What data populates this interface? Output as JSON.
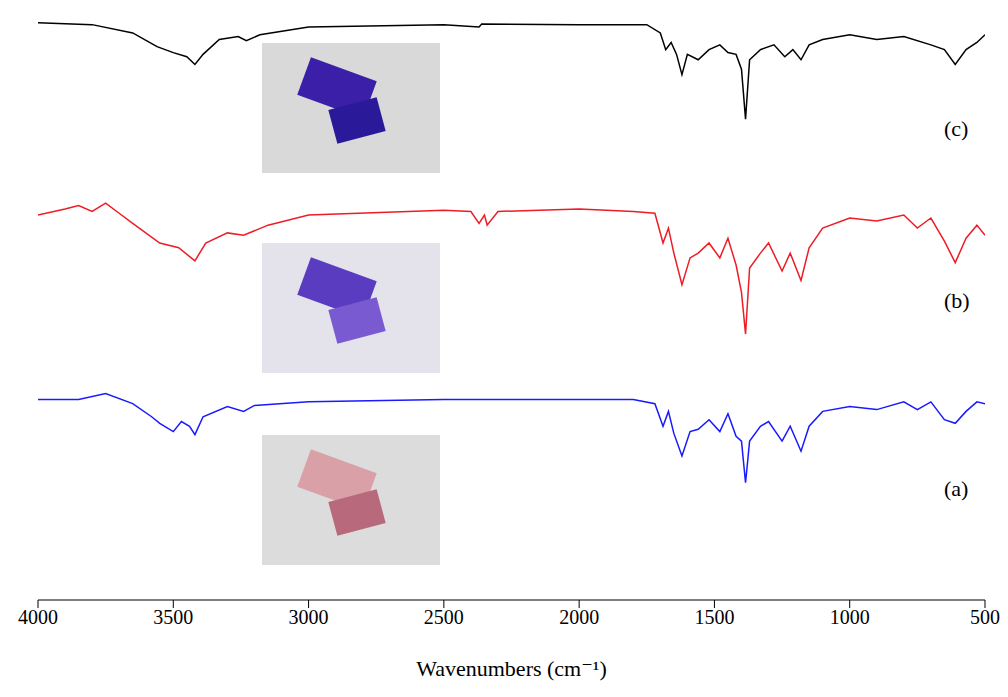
{
  "chart_data": {
    "type": "line",
    "xlabel": "Wavenumbers (cm⁻¹)",
    "xlim": [
      4000,
      500
    ],
    "xticks": [
      4000,
      3500,
      3000,
      2500,
      2000,
      1500,
      1000,
      500
    ],
    "ylim": [
      0,
      100
    ],
    "tick_labels": "x",
    "grid": false,
    "series": [
      {
        "name": "(c)",
        "color": "#000000",
        "x": [
          4000,
          3800,
          3650,
          3560,
          3500,
          3450,
          3420,
          3390,
          3330,
          3260,
          3230,
          3180,
          3000,
          2500,
          2370,
          2360,
          2000,
          1750,
          1700,
          1680,
          1660,
          1640,
          1620,
          1600,
          1560,
          1520,
          1480,
          1450,
          1420,
          1400,
          1385,
          1370,
          1330,
          1280,
          1240,
          1210,
          1180,
          1150,
          1100,
          1000,
          900,
          800,
          700,
          650,
          610,
          570,
          530,
          500
        ],
        "values": [
          97,
          96.7,
          95.3,
          93,
          92,
          91.3,
          90,
          91.7,
          94.2,
          94.7,
          94,
          95,
          96.3,
          96.7,
          96.3,
          96.8,
          96.7,
          96.7,
          95.3,
          92.5,
          93.7,
          91.7,
          88.3,
          91.7,
          90.8,
          92.5,
          93.3,
          92,
          91.7,
          89.2,
          80.8,
          90.8,
          92.5,
          93.3,
          91.3,
          92.5,
          90.8,
          93.3,
          94.2,
          95,
          94.2,
          94.7,
          93.3,
          92.5,
          90,
          92.5,
          93.7,
          95
        ]
      },
      {
        "name": "(b)",
        "color": "#ee1c25",
        "x": [
          4000,
          3900,
          3850,
          3800,
          3750,
          3700,
          3650,
          3550,
          3480,
          3420,
          3380,
          3300,
          3240,
          3150,
          3000,
          2500,
          2400,
          2370,
          2350,
          2340,
          2300,
          2000,
          1800,
          1720,
          1690,
          1670,
          1650,
          1620,
          1590,
          1560,
          1520,
          1480,
          1450,
          1420,
          1400,
          1385,
          1370,
          1330,
          1300,
          1250,
          1220,
          1180,
          1150,
          1100,
          1000,
          900,
          800,
          750,
          700,
          650,
          610,
          570,
          530,
          500
        ],
        "values": [
          64.7,
          65.7,
          66.3,
          65.3,
          66.7,
          65,
          63.3,
          60,
          59.2,
          57,
          60,
          61.7,
          61.3,
          63,
          64.7,
          65.5,
          65.3,
          63.3,
          64.7,
          63,
          65.3,
          65.7,
          65.3,
          65,
          60,
          62.5,
          58.3,
          53,
          57.5,
          58.3,
          60,
          57.5,
          60.8,
          56.3,
          51.7,
          44.7,
          55.8,
          58.3,
          60,
          55.3,
          58.3,
          53.7,
          59.2,
          62.5,
          64.2,
          63.7,
          64.7,
          62.5,
          64.2,
          60.3,
          56.7,
          60.8,
          63,
          61.3
        ]
      },
      {
        "name": "(a)",
        "color": "#1a1aff",
        "x": [
          4000,
          3850,
          3750,
          3650,
          3580,
          3550,
          3500,
          3470,
          3440,
          3420,
          3390,
          3300,
          3240,
          3200,
          3000,
          2500,
          2000,
          1800,
          1720,
          1690,
          1670,
          1650,
          1620,
          1590,
          1560,
          1520,
          1480,
          1450,
          1420,
          1400,
          1385,
          1370,
          1330,
          1300,
          1250,
          1220,
          1180,
          1150,
          1100,
          1000,
          900,
          800,
          750,
          700,
          650,
          610,
          570,
          530,
          500
        ],
        "values": [
          33.7,
          33.7,
          34.7,
          33,
          30.8,
          29.7,
          28.3,
          30,
          29.2,
          27.8,
          30.8,
          32.5,
          31.7,
          32.7,
          33.3,
          33.7,
          33.7,
          33.7,
          33,
          29.2,
          31.7,
          28,
          24.2,
          28.3,
          28.7,
          30.3,
          28.3,
          31.3,
          27.5,
          26.7,
          19.7,
          26.7,
          29.2,
          30,
          26.7,
          29.2,
          25,
          29.2,
          31.7,
          32.5,
          32,
          33.3,
          32,
          33.3,
          30.3,
          29.7,
          31.7,
          33.3,
          33
        ]
      }
    ]
  }
}
